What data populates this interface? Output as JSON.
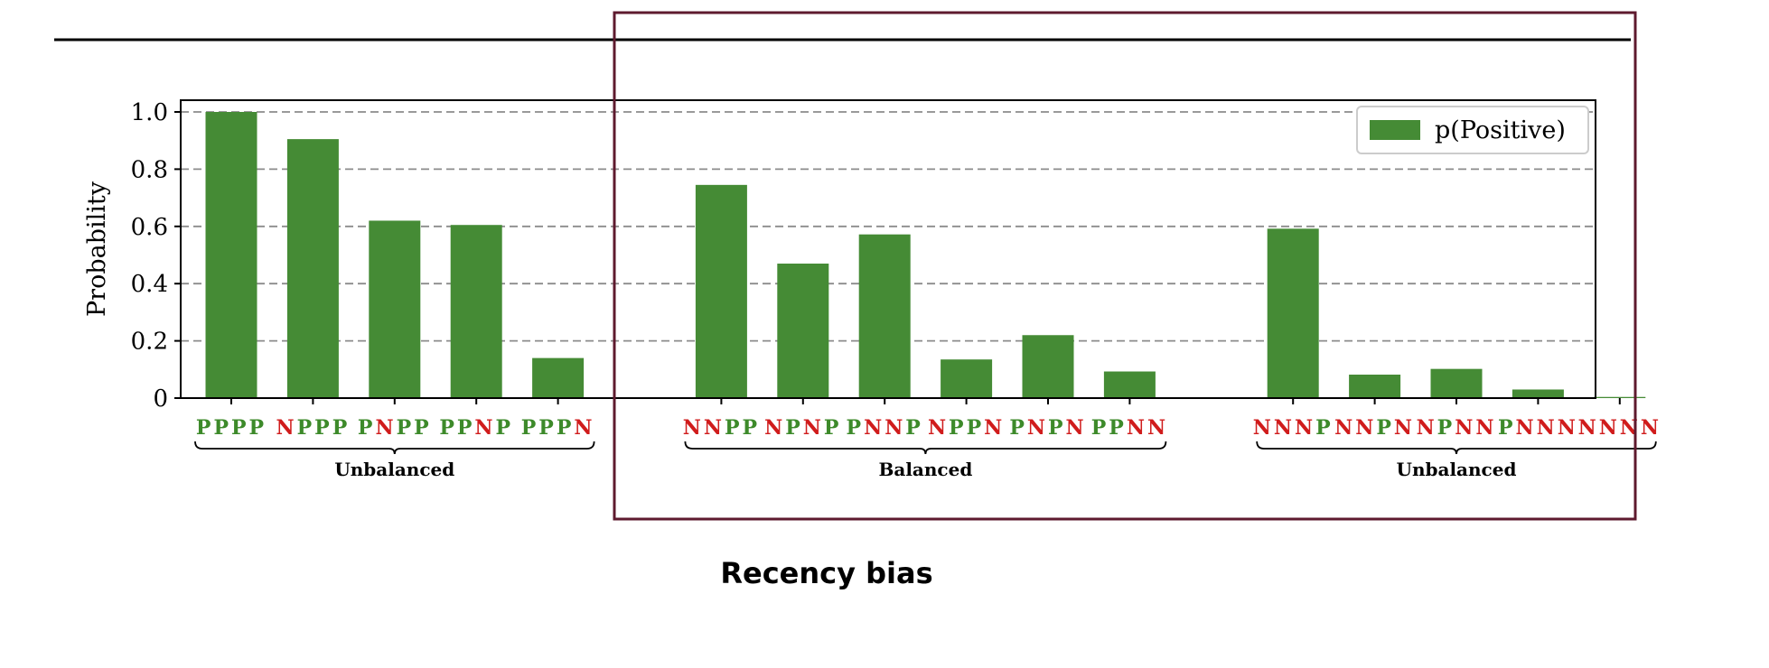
{
  "caption": "Recency bias",
  "colors": {
    "bar": "#458b35",
    "positive_letter": "#3d8a2a",
    "negative_letter": "#d01c1c",
    "highlight_box": "#5e1a2e",
    "grid": "#8c8c8c",
    "axis": "#000000"
  },
  "chart_data": {
    "type": "bar",
    "ylabel": "Probability",
    "ylim": [
      0,
      1.05
    ],
    "yticks": [
      "0",
      "0.2",
      "0.4",
      "0.6",
      "0.8",
      "1.0"
    ],
    "ytick_values": [
      0,
      0.2,
      0.4,
      0.6,
      0.8,
      1.0
    ],
    "grid": "horizontal dashed",
    "legend": {
      "position": "top-right",
      "entries": [
        "p(Positive)"
      ]
    },
    "series": [
      {
        "name": "p(Positive)",
        "values": [
          1.0,
          0.905,
          0.62,
          0.605,
          0.14,
          0.745,
          0.47,
          0.572,
          0.135,
          0.22,
          0.093,
          0.592,
          0.082,
          0.102,
          0.03,
          0.004
        ]
      }
    ],
    "categories": [
      "PPPP",
      "NPPP",
      "PNPP",
      "PPNP",
      "PPPN",
      "NNPP",
      "NPNP",
      "PNNP",
      "NPPN",
      "PNPN",
      "PPNN",
      "NNNP",
      "NNPN",
      "NPNN",
      "PNNN",
      "NNNN"
    ],
    "groups": [
      {
        "label": "Unbalanced",
        "start": 0,
        "end": 4
      },
      {
        "label": "Balanced",
        "start": 5,
        "end": 10
      },
      {
        "label": "Unbalanced",
        "start": 11,
        "end": 15
      }
    ],
    "highlight": {
      "start": 5,
      "end": 15
    }
  }
}
